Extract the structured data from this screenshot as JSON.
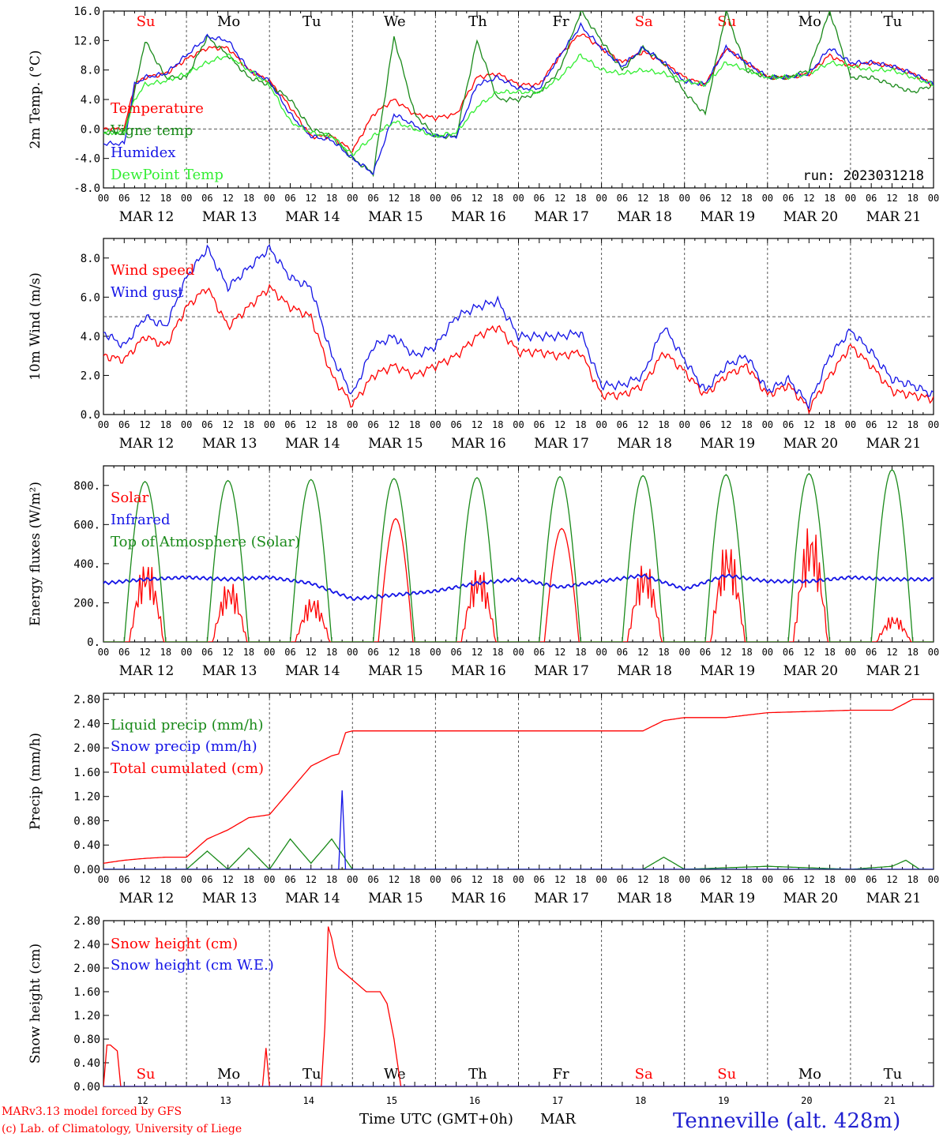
{
  "colors": {
    "red": "#ff0000",
    "dark_green": "#1a8a1a",
    "blue": "#1414e6",
    "light_green": "#33ee33",
    "grid": "#555555",
    "blue_solid": "#2020d0"
  },
  "header_axis": {
    "hours": [
      "00",
      "06",
      "12",
      "18"
    ],
    "dates": [
      "MAR 12",
      "MAR 13",
      "MAR 14",
      "MAR 15",
      "MAR 16",
      "MAR 17",
      "MAR 18",
      "MAR 19",
      "MAR 20",
      "MAR 21"
    ],
    "weekdays": [
      "Su",
      "Mo",
      "Tu",
      "We",
      "Th",
      "Fr",
      "Sa",
      "Su",
      "Mo",
      "Tu"
    ],
    "weekday_colors": [
      "#ff0000",
      "#000000",
      "#000000",
      "#000000",
      "#000000",
      "#000000",
      "#ff0000",
      "#ff0000",
      "#000000",
      "#000000"
    ]
  },
  "footer": {
    "day_numbers": [
      "12",
      "13",
      "14",
      "15",
      "16",
      "17",
      "18",
      "19",
      "20",
      "21"
    ],
    "xlabel": "Time UTC (GMT+0h)",
    "month": "MAR",
    "credit_line1": "MARv3.13 model forced by GFS",
    "credit_line2": "(c) Lab. of Climatology, University of Liege",
    "station": "Tenneville (alt. 428m)"
  },
  "chart_data": [
    {
      "type": "line",
      "ylabel": "2m Temp. (°C)",
      "ylim": [
        -8,
        16
      ],
      "yticks": [
        "-8.0",
        "-4.0",
        "0.0",
        "4.0",
        "8.0",
        "12.0",
        "16.0"
      ],
      "run_label": "run: 2023031218",
      "x_unit": "hours since 2023-03-12 00 UTC",
      "x_range": [
        0,
        240
      ],
      "dashed_reference": 0,
      "series": [
        {
          "name": "Temperature",
          "color": "#ff0000",
          "x": [
            0,
            6,
            9,
            12,
            18,
            24,
            30,
            36,
            42,
            48,
            54,
            60,
            66,
            72,
            78,
            84,
            90,
            96,
            102,
            108,
            114,
            120,
            126,
            132,
            138,
            144,
            150,
            156,
            162,
            168,
            174,
            180,
            186,
            192,
            198,
            204,
            210,
            216,
            222,
            228,
            234,
            240
          ],
          "y": [
            0,
            0,
            6,
            7,
            7.5,
            9.5,
            11,
            11,
            8,
            6.5,
            3,
            -1,
            -1,
            -3,
            2,
            4,
            2,
            1.5,
            2,
            7,
            7.5,
            6,
            6,
            10,
            13,
            11,
            9,
            10.5,
            9,
            7,
            6,
            11,
            9,
            7,
            7,
            7.5,
            10,
            8.5,
            9,
            8.5,
            7.5,
            6
          ]
        },
        {
          "name": "Vigne temp",
          "color": "#1a8a1a",
          "x": [
            0,
            6,
            9,
            12,
            18,
            24,
            30,
            36,
            42,
            48,
            54,
            60,
            66,
            72,
            78,
            84,
            90,
            96,
            102,
            108,
            114,
            120,
            126,
            132,
            138,
            144,
            150,
            156,
            162,
            168,
            174,
            180,
            186,
            192,
            198,
            204,
            210,
            216,
            222,
            228,
            234,
            240
          ],
          "y": [
            -0.5,
            -0.5,
            5,
            12,
            7,
            7,
            12.5,
            10,
            7,
            6,
            4,
            0,
            -1,
            -4,
            -6,
            12.5,
            2,
            -1,
            -1,
            12,
            4,
            4,
            5,
            8,
            16,
            12,
            8,
            11,
            9,
            5,
            2,
            16,
            8,
            7,
            7,
            8,
            16,
            7,
            7,
            6,
            5,
            6
          ]
        },
        {
          "name": "Humidex",
          "color": "#1414e6",
          "x": [
            0,
            6,
            9,
            12,
            18,
            24,
            30,
            36,
            42,
            48,
            54,
            60,
            66,
            72,
            78,
            84,
            90,
            96,
            102,
            108,
            114,
            120,
            126,
            132,
            138,
            144,
            150,
            156,
            162,
            168,
            174,
            180,
            186,
            192,
            198,
            204,
            210,
            216,
            222,
            228,
            234,
            240
          ],
          "y": [
            -2,
            -2,
            6,
            7,
            7.5,
            10,
            12.5,
            12,
            8,
            6.5,
            2,
            -1,
            -1.5,
            -4,
            -6,
            2,
            0.5,
            -1,
            -1,
            6,
            7,
            5.5,
            5.5,
            10,
            14,
            11,
            8.5,
            11,
            9,
            6.5,
            6,
            11,
            9,
            7,
            7,
            7.5,
            11,
            9,
            9,
            8.5,
            7.5,
            6
          ]
        },
        {
          "name": "DewPoint Temp",
          "color": "#33ee33",
          "x": [
            0,
            6,
            9,
            12,
            18,
            24,
            30,
            36,
            42,
            48,
            54,
            60,
            66,
            72,
            78,
            84,
            90,
            96,
            102,
            108,
            114,
            120,
            126,
            132,
            138,
            144,
            150,
            156,
            162,
            168,
            174,
            180,
            186,
            192,
            198,
            204,
            210,
            216,
            222,
            228,
            234,
            240
          ],
          "y": [
            -0.5,
            -0.5,
            4,
            6,
            6.5,
            7.5,
            9,
            10,
            8,
            6,
            1,
            -0.5,
            -1,
            -3.5,
            -1,
            1,
            0,
            -1,
            -0.5,
            3,
            5,
            5,
            5,
            7,
            10,
            8,
            7.5,
            8,
            7.5,
            6.5,
            6,
            9,
            8,
            7,
            7,
            7.5,
            9,
            8.5,
            8,
            8,
            7,
            6
          ]
        }
      ]
    },
    {
      "type": "line",
      "ylabel": "10m Wind (m/s)",
      "ylim": [
        0,
        9
      ],
      "yticks": [
        "0.0",
        "2.0",
        "4.0",
        "6.0",
        "8.0"
      ],
      "dashed_reference": 5,
      "series": [
        {
          "name": "Wind speed",
          "color": "#ff0000",
          "x": [
            0,
            6,
            12,
            18,
            24,
            30,
            36,
            42,
            48,
            54,
            60,
            66,
            72,
            78,
            84,
            90,
            96,
            102,
            108,
            114,
            120,
            126,
            132,
            138,
            144,
            150,
            156,
            162,
            168,
            174,
            180,
            186,
            192,
            198,
            204,
            210,
            216,
            222,
            228,
            234,
            240
          ],
          "y": [
            3,
            2.8,
            4,
            3.5,
            5.5,
            6.5,
            4.5,
            5.5,
            6.5,
            5.5,
            5,
            2,
            0.5,
            2,
            2.5,
            2,
            2.5,
            3,
            4,
            4.5,
            3.2,
            3.2,
            3,
            3.2,
            1,
            1,
            1.5,
            3.2,
            2.2,
            1,
            2,
            2.5,
            1,
            1.5,
            0.3,
            2,
            3.5,
            2.5,
            1.2,
            1,
            0.8
          ]
        },
        {
          "name": "Wind gust",
          "color": "#1414e6",
          "x": [
            0,
            6,
            12,
            18,
            24,
            30,
            36,
            42,
            48,
            54,
            60,
            66,
            72,
            78,
            84,
            90,
            96,
            102,
            108,
            114,
            120,
            126,
            132,
            138,
            144,
            150,
            156,
            162,
            168,
            174,
            180,
            186,
            192,
            198,
            204,
            210,
            216,
            222,
            228,
            234,
            240
          ],
          "y": [
            4.2,
            3.5,
            5,
            4.5,
            7,
            8.5,
            6.5,
            7.5,
            8.5,
            7,
            6.5,
            3,
            1,
            3.5,
            4,
            3,
            3.5,
            5,
            5.5,
            5.8,
            4,
            4,
            4,
            4.2,
            1.5,
            1.5,
            2,
            4.5,
            2.8,
            1.2,
            2.5,
            3,
            1.2,
            1.8,
            0.5,
            3,
            4.3,
            3.2,
            1.8,
            1.5,
            1
          ]
        }
      ]
    },
    {
      "type": "line",
      "ylabel": "Energy fluxes (W/m²)",
      "ylim": [
        0,
        900
      ],
      "yticks": [
        "0.",
        "200.",
        "400.",
        "600.",
        "800."
      ],
      "series": [
        {
          "name": "Solar",
          "color": "#ff0000",
          "daily_peak": [
            430,
            320,
            240,
            630,
            400,
            580,
            420,
            530,
            620,
            140
          ]
        },
        {
          "name": "Infrared",
          "color": "#1414e6",
          "x": [
            0,
            12,
            24,
            36,
            48,
            60,
            72,
            84,
            96,
            108,
            120,
            132,
            144,
            156,
            168,
            180,
            192,
            204,
            216,
            228,
            240
          ],
          "y": [
            300,
            320,
            330,
            320,
            330,
            300,
            220,
            240,
            260,
            300,
            320,
            280,
            310,
            340,
            270,
            340,
            310,
            310,
            330,
            320,
            320
          ]
        },
        {
          "name": "Top of Atmosphere (Solar)",
          "color": "#1a8a1a",
          "daily_peak": [
            820,
            825,
            830,
            835,
            840,
            845,
            850,
            855,
            860,
            880
          ]
        }
      ]
    },
    {
      "type": "line",
      "ylabel": "Precip (mm/h)",
      "ylim": [
        0,
        2.9
      ],
      "yticks": [
        "0.00",
        "0.40",
        "0.80",
        "1.20",
        "1.60",
        "2.00",
        "2.40",
        "2.80"
      ],
      "series": [
        {
          "name": "Liquid precip (mm/h)",
          "color": "#1a8a1a",
          "x": [
            0,
            24,
            30,
            36,
            42,
            48,
            54,
            60,
            66,
            72,
            78,
            84,
            144,
            156,
            162,
            168,
            192,
            216,
            228,
            232,
            236,
            240
          ],
          "y": [
            0,
            0,
            0.3,
            0,
            0.35,
            0,
            0.5,
            0.1,
            0.5,
            0,
            0,
            0,
            0,
            0,
            0.2,
            0,
            0.05,
            0,
            0.05,
            0.15,
            0,
            0
          ]
        },
        {
          "name": "Snow precip (mm/h)",
          "color": "#1414e6",
          "x": [
            0,
            66,
            68,
            69,
            70,
            72,
            240
          ],
          "y": [
            0,
            0,
            0,
            1.3,
            0,
            0,
            0
          ]
        },
        {
          "name": "Total cumulated (cm)",
          "color": "#ff0000",
          "x": [
            0,
            6,
            12,
            18,
            24,
            30,
            36,
            42,
            48,
            54,
            60,
            66,
            68,
            70,
            72,
            84,
            96,
            120,
            144,
            156,
            162,
            168,
            180,
            192,
            204,
            216,
            228,
            234,
            240
          ],
          "y": [
            0.1,
            0.15,
            0.18,
            0.2,
            0.2,
            0.5,
            0.65,
            0.85,
            0.9,
            1.3,
            1.7,
            1.87,
            1.9,
            2.25,
            2.28,
            2.28,
            2.28,
            2.28,
            2.28,
            2.28,
            2.45,
            2.5,
            2.5,
            2.58,
            2.6,
            2.62,
            2.62,
            2.8,
            2.8
          ]
        }
      ]
    },
    {
      "type": "line",
      "ylabel": "Snow height (cm)",
      "ylim": [
        0,
        2.8
      ],
      "yticks": [
        "0.00",
        "0.40",
        "0.80",
        "1.20",
        "1.60",
        "2.00",
        "2.40",
        "2.80"
      ],
      "series": [
        {
          "name": "Snow height (cm)",
          "color": "#ff0000",
          "x": [
            0,
            1,
            2,
            3,
            4,
            5,
            46,
            47,
            48,
            63,
            64,
            65,
            66,
            67,
            68,
            72,
            76,
            80,
            82,
            84,
            86,
            88,
            240
          ],
          "y": [
            0,
            0.7,
            0.7,
            0.65,
            0.6,
            0,
            0,
            0.65,
            0,
            0,
            1.0,
            2.7,
            2.5,
            2.2,
            2.0,
            1.8,
            1.6,
            1.6,
            1.4,
            0.8,
            0,
            0,
            0
          ]
        },
        {
          "name": "Snow height (cm W.E.)",
          "color": "#1414e6",
          "x": [
            0,
            240
          ],
          "y": [
            0,
            0
          ]
        }
      ]
    }
  ]
}
